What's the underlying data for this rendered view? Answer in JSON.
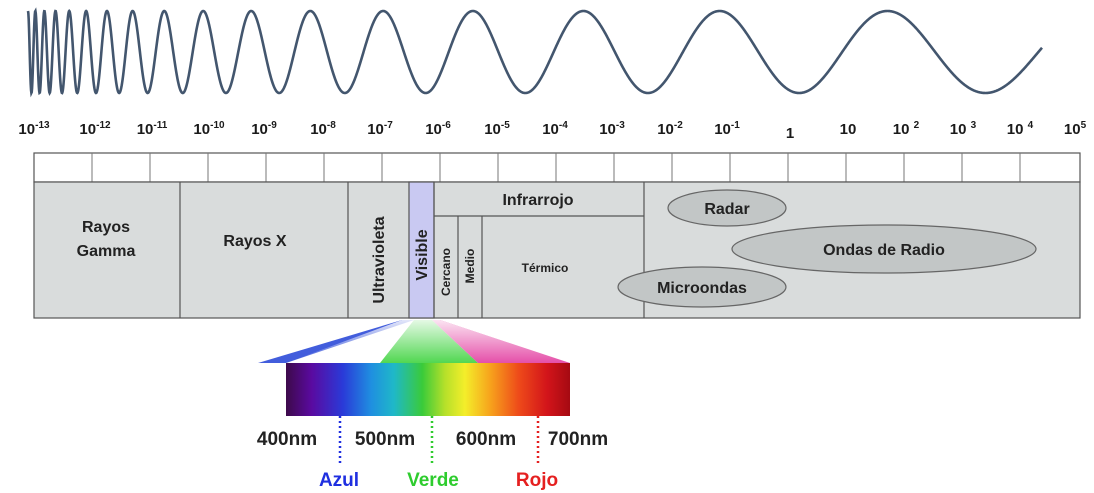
{
  "wavelength_scale": [
    {
      "base": "10",
      "exp": "-13"
    },
    {
      "base": "10",
      "exp": "-12"
    },
    {
      "base": "10",
      "exp": "-11"
    },
    {
      "base": "10",
      "exp": "-10"
    },
    {
      "base": "10",
      "exp": "-9"
    },
    {
      "base": "10",
      "exp": "-8"
    },
    {
      "base": "10",
      "exp": "-7"
    },
    {
      "base": "10",
      "exp": "-6"
    },
    {
      "base": "10",
      "exp": "-5"
    },
    {
      "base": "10",
      "exp": "-4"
    },
    {
      "base": "10",
      "exp": "-3"
    },
    {
      "base": "10",
      "exp": "-2"
    },
    {
      "base": "10",
      "exp": "-1"
    },
    {
      "base": "1",
      "exp": ""
    },
    {
      "base": "10",
      "exp": ""
    },
    {
      "base": "10 ",
      "exp": "2"
    },
    {
      "base": "10 ",
      "exp": "3"
    },
    {
      "base": "10 ",
      "exp": "4"
    },
    {
      "base": "10",
      "exp": "5"
    }
  ],
  "bands": {
    "gamma": "Rayos Gamma",
    "gamma_line1": "Rayos",
    "gamma_line2": "Gamma",
    "xray": "Rayos X",
    "uv": "Ultravioleta",
    "visible": "Visible",
    "infrared": "Infrarrojo",
    "near": "Cercano",
    "mid": "Medio",
    "thermal": "Térmico",
    "radar": "Radar",
    "radio": "Ondas de Radio",
    "microwave": "Microondas"
  },
  "visible_scale": {
    "labels": [
      "400nm",
      "500nm",
      "600nm",
      "700nm"
    ]
  },
  "colors": [
    {
      "name": "Azul",
      "color": "#1f2fe0"
    },
    {
      "name": "Verde",
      "color": "#2ecc2e"
    },
    {
      "name": "Rojo",
      "color": "#e52020"
    }
  ],
  "palette": {
    "band_fill": "#d9dcdc",
    "visible_fill": "#c9c9f2",
    "ellipse_fill": "#c2c6c6",
    "wave_stroke": "#43566e"
  }
}
